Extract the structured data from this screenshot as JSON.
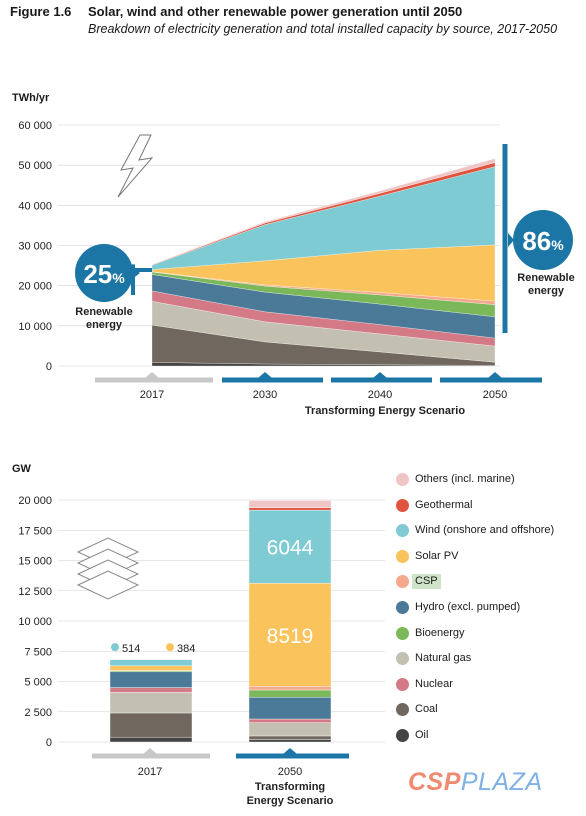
{
  "figure": {
    "number": "Figure 1.6",
    "title": "Solar, wind and other renewable power generation until 2050",
    "subtitle": "Breakdown of electricity generation and total installed capacity by source, 2017-2050"
  },
  "colors": {
    "Others (incl. marine)": "#f0c5c5",
    "Geothermal": "#e0533e",
    "Wind (onshore and offshore)": "#7ecbd3",
    "Solar PV": "#fbc35c",
    "CSP": "#f4a98c",
    "Hydro (excl. pumped)": "#4b7a99",
    "Bioenergy": "#7ab859",
    "Natural gas": "#c3c0b1",
    "Nuclear": "#d47a86",
    "Coal": "#70685f",
    "Oil": "#444444",
    "accent": "#1c76a5",
    "baseline_bar": "#c8c8c8"
  },
  "legend": {
    "items": [
      "Others (incl. marine)",
      "Geothermal",
      "Wind (onshore and offshore)",
      "Solar PV",
      "CSP",
      "Hydro (excl. pumped)",
      "Bioenergy",
      "Natural gas",
      "Nuclear",
      "Coal",
      "Oil"
    ]
  },
  "watermark": {
    "part1": "CSP",
    "part2": "PLAZA"
  },
  "chart_data": [
    {
      "type": "area",
      "ylabel": "TWh/yr",
      "ylim": [
        0,
        60000
      ],
      "yticks": [
        0,
        10000,
        20000,
        30000,
        40000,
        50000,
        60000
      ],
      "ytick_labels": [
        "0",
        "10 000",
        "20 000",
        "30 000",
        "40 000",
        "50 000",
        "60 000"
      ],
      "x": [
        2017,
        2030,
        2040,
        2050
      ],
      "x_labels": [
        "2017",
        "2030",
        "2040",
        "2050"
      ],
      "scenario_label": "Transforming Energy Scenario",
      "series": [
        {
          "name": "Oil",
          "values": [
            900,
            500,
            300,
            150
          ]
        },
        {
          "name": "Coal",
          "values": [
            9300,
            5500,
            3200,
            800
          ]
        },
        {
          "name": "Natural gas",
          "values": [
            5900,
            5000,
            4500,
            4000
          ]
        },
        {
          "name": "Nuclear",
          "values": [
            2600,
            2500,
            2300,
            2000
          ]
        },
        {
          "name": "Hydro (excl. pumped)",
          "values": [
            4100,
            4900,
            5100,
            5300
          ]
        },
        {
          "name": "Bioenergy",
          "values": [
            600,
            1500,
            2300,
            3000
          ]
        },
        {
          "name": "CSP",
          "values": [
            100,
            300,
            600,
            900
          ]
        },
        {
          "name": "Solar PV",
          "values": [
            500,
            6000,
            10500,
            14000
          ]
        },
        {
          "name": "Wind (onshore and offshore)",
          "values": [
            1100,
            9000,
            13500,
            19500
          ]
        },
        {
          "name": "Geothermal",
          "values": [
            100,
            400,
            700,
            1000
          ]
        },
        {
          "name": "Others (incl. marine)",
          "values": [
            100,
            300,
            600,
            1000
          ]
        }
      ],
      "annotations": [
        {
          "value": "25",
          "unit": "%",
          "label_line1": "Renewable",
          "label_line2": "energy"
        },
        {
          "value": "86",
          "unit": "%",
          "label_line1": "Renewable",
          "label_line2": "energy"
        }
      ]
    },
    {
      "type": "bar",
      "stacked": true,
      "ylabel": "GW",
      "ylim": [
        0,
        20000
      ],
      "yticks": [
        0,
        2500,
        5000,
        7500,
        10000,
        12500,
        15000,
        17500,
        20000
      ],
      "ytick_labels": [
        "0",
        "2 500",
        "5 000",
        "7 500",
        "10 000",
        "12 500",
        "15 000",
        "17 500",
        "20 000"
      ],
      "categories": [
        "2017",
        "2050"
      ],
      "category_subtitles": [
        "",
        "Transforming Energy Scenario"
      ],
      "series": [
        {
          "name": "Oil",
          "values": [
            400,
            200
          ]
        },
        {
          "name": "Coal",
          "values": [
            2000,
            300
          ]
        },
        {
          "name": "Natural gas",
          "values": [
            1700,
            1100
          ]
        },
        {
          "name": "Nuclear",
          "values": [
            400,
            300
          ]
        },
        {
          "name": "Hydro (excl. pumped)",
          "values": [
            1300,
            1800
          ]
        },
        {
          "name": "Bioenergy",
          "values": [
            100,
            600
          ]
        },
        {
          "name": "CSP",
          "values": [
            10,
            300
          ]
        },
        {
          "name": "Solar PV",
          "values": [
            384,
            8519
          ]
        },
        {
          "name": "Wind (onshore and offshore)",
          "values": [
            514,
            6044
          ]
        },
        {
          "name": "Geothermal",
          "values": [
            20,
            200
          ]
        },
        {
          "name": "Others (incl. marine)",
          "values": [
            20,
            600
          ]
        }
      ],
      "data_labels": {
        "2017": [
          {
            "series": "Wind (onshore and offshore)",
            "value": "514"
          },
          {
            "series": "Solar PV",
            "value": "384"
          }
        ],
        "2050": [
          {
            "series": "Wind (onshore and offshore)",
            "value": "6044"
          },
          {
            "series": "Solar PV",
            "value": "8519"
          }
        ]
      }
    }
  ]
}
